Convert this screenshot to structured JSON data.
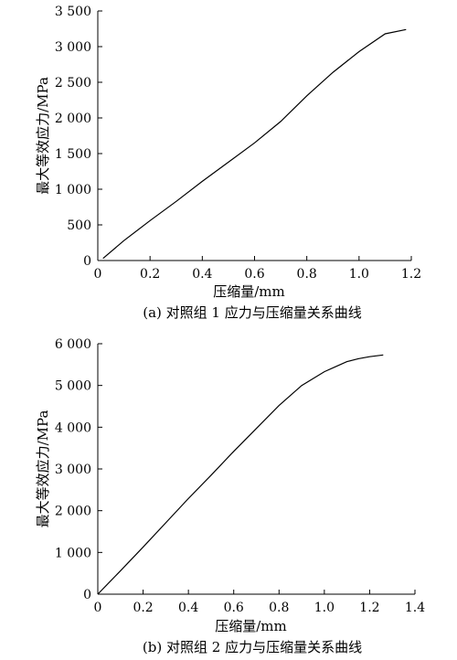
{
  "chart_data": [
    {
      "type": "line",
      "caption": "(a) 对照组 1 应力与压缩量关系曲线",
      "xlabel": "压缩量/mm",
      "ylabel": "最大等效应力/MPa",
      "xlim": [
        0,
        1.2
      ],
      "ylim": [
        0,
        3500
      ],
      "xticks": [
        0,
        0.2,
        0.4,
        0.6,
        0.8,
        1.0,
        1.2
      ],
      "xtick_labels": [
        "0",
        "0.2",
        "0.4",
        "0.6",
        "0.8",
        "1.0",
        "1.2"
      ],
      "yticks": [
        0,
        500,
        1000,
        1500,
        2000,
        2500,
        3000,
        3500
      ],
      "ytick_labels": [
        "0",
        "500",
        "1 000",
        "1 500",
        "2 000",
        "2 500",
        "3 000",
        "3 500"
      ],
      "series": [
        {
          "x": [
            0.02,
            0.1,
            0.2,
            0.3,
            0.4,
            0.5,
            0.6,
            0.7,
            0.8,
            0.9,
            1.0,
            1.1,
            1.18
          ],
          "y": [
            30,
            280,
            560,
            830,
            1110,
            1380,
            1650,
            1950,
            2310,
            2640,
            2930,
            3180,
            3240
          ]
        }
      ]
    },
    {
      "type": "line",
      "caption": "(b) 对照组 2 应力与压缩量关系曲线",
      "xlabel": "压缩量/mm",
      "ylabel": "最大等效应力/MPa",
      "xlim": [
        0,
        1.4
      ],
      "ylim": [
        0,
        6000
      ],
      "xticks": [
        0,
        0.2,
        0.4,
        0.6,
        0.8,
        1.0,
        1.2,
        1.4
      ],
      "xtick_labels": [
        "0",
        "0.2",
        "0.4",
        "0.6",
        "0.8",
        "1.0",
        "1.2",
        "1.4"
      ],
      "yticks": [
        0,
        1000,
        2000,
        3000,
        4000,
        5000,
        6000
      ],
      "ytick_labels": [
        "0",
        "1 000",
        "2 000",
        "3 000",
        "4 000",
        "5 000",
        "6 000"
      ],
      "series": [
        {
          "x": [
            0.0,
            0.1,
            0.2,
            0.3,
            0.4,
            0.5,
            0.6,
            0.7,
            0.8,
            0.9,
            1.0,
            1.05,
            1.1,
            1.15,
            1.2,
            1.26
          ],
          "y": [
            0,
            560,
            1130,
            1710,
            2290,
            2850,
            3420,
            3970,
            4520,
            5000,
            5330,
            5450,
            5570,
            5640,
            5690,
            5730
          ]
        }
      ]
    }
  ]
}
